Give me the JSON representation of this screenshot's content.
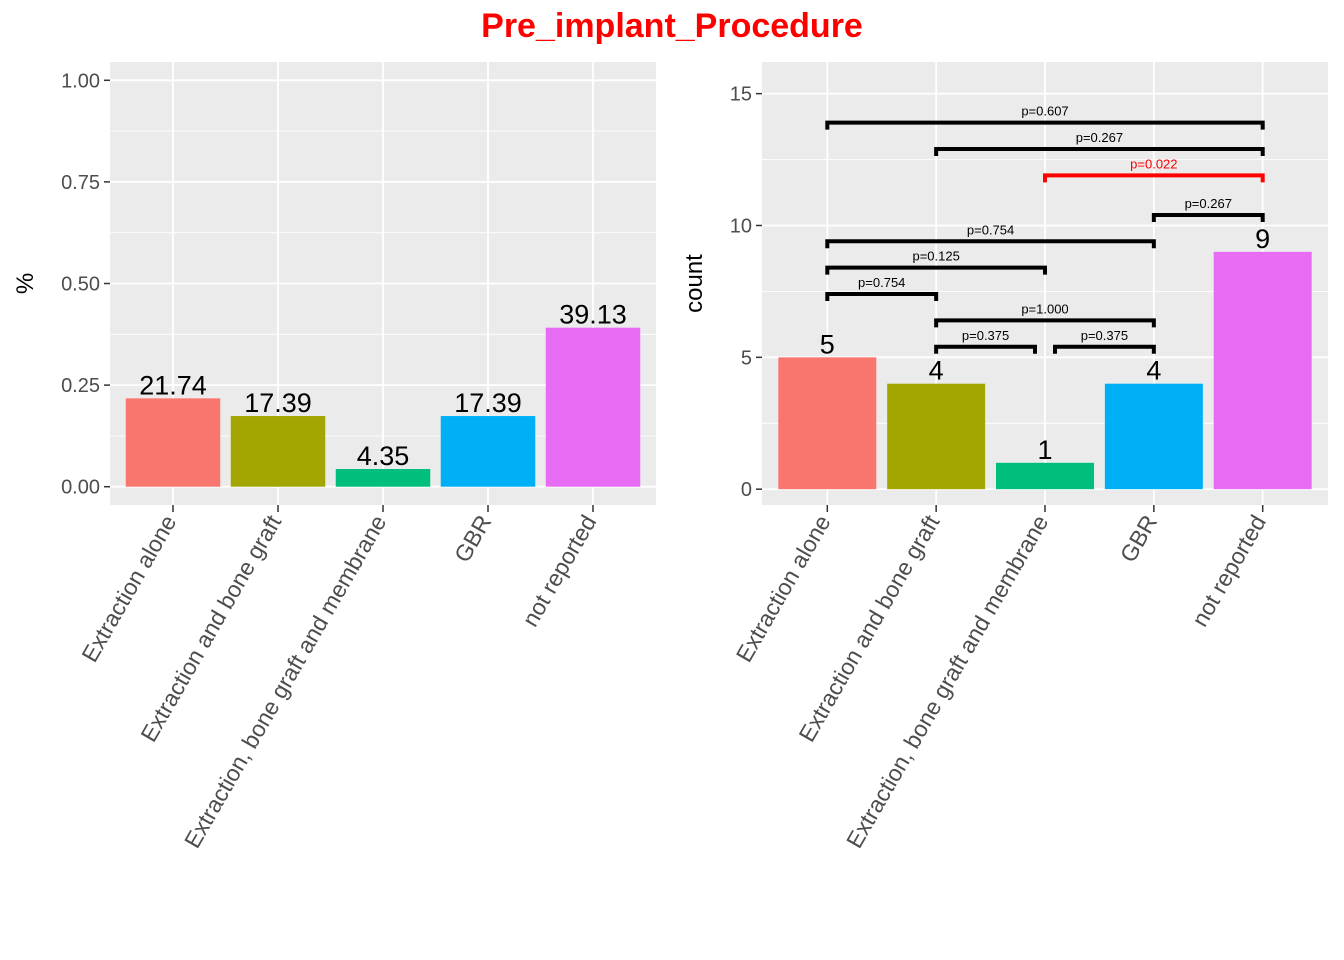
{
  "title": "Pre_implant_Procedure",
  "colors": {
    "title": "#ff0000",
    "panel_bg": "#ebebeb",
    "grid": "#ffffff",
    "axis_tick": "#333333",
    "bracket": "#000000",
    "bracket_significant": "#ff0000"
  },
  "chart_data": [
    {
      "type": "bar",
      "panel": "left",
      "title": "",
      "xlabel": "",
      "ylabel": "%",
      "ylim": [
        -0.045,
        1.045
      ],
      "yticks": [
        0,
        0.25,
        0.5,
        0.75,
        1
      ],
      "ytick_labels": [
        "0.00",
        "0.25",
        "0.50",
        "0.75",
        "1.00"
      ],
      "grid": true,
      "categories": [
        "Extraction alone",
        "Extraction and bone graft",
        "Extraction, bone graft and membrane",
        "GBR",
        "not reported"
      ],
      "values": [
        0.2174,
        0.1739,
        0.0435,
        0.1739,
        0.3913
      ],
      "labels": [
        "21.74",
        "17.39",
        "4.35",
        "17.39",
        "39.13"
      ],
      "bar_colors": [
        "#F8766D",
        "#A3A500",
        "#00BF7D",
        "#00B0F6",
        "#E76BF3"
      ]
    },
    {
      "type": "bar",
      "panel": "right",
      "title": "",
      "xlabel": "",
      "ylabel": "count",
      "ylim": [
        -0.6,
        16.2
      ],
      "yticks": [
        0,
        5,
        10,
        15
      ],
      "ytick_labels": [
        "0",
        "5",
        "10",
        "15"
      ],
      "grid": true,
      "categories": [
        "Extraction alone",
        "Extraction and bone graft",
        "Extraction, bone graft and membrane",
        "GBR",
        "not reported"
      ],
      "values": [
        5,
        4,
        1,
        4,
        9
      ],
      "labels": [
        "5",
        "4",
        "1",
        "4",
        "9"
      ],
      "bar_colors": [
        "#F8766D",
        "#A3A500",
        "#00BF7D",
        "#00B0F6",
        "#E76BF3"
      ],
      "comparisons": [
        {
          "from": 0,
          "to": 4,
          "y": 13.9,
          "label": "p=0.607",
          "significant": false
        },
        {
          "from": 1,
          "to": 4,
          "y": 12.9,
          "label": "p=0.267",
          "significant": false
        },
        {
          "from": 2,
          "to": 4,
          "y": 11.9,
          "label": "p=0.022",
          "significant": true
        },
        {
          "from": 3,
          "to": 4,
          "y": 10.4,
          "label": "p=0.267",
          "significant": false
        },
        {
          "from": 0,
          "to": 3,
          "y": 9.4,
          "label": "p=0.754",
          "significant": false
        },
        {
          "from": 0,
          "to": 2,
          "y": 8.4,
          "label": "p=0.125",
          "significant": false
        },
        {
          "from": 0,
          "to": 1,
          "y": 7.4,
          "label": "p=0.754",
          "significant": false
        },
        {
          "from": 1,
          "to": 3,
          "y": 6.4,
          "label": "p=1.000",
          "significant": false
        },
        {
          "from": 1,
          "to": 2,
          "y": 5.4,
          "label": "p=0.375",
          "significant": false,
          "inset": "right"
        },
        {
          "from": 2,
          "to": 3,
          "y": 5.4,
          "label": "p=0.375",
          "significant": false,
          "inset": "left"
        }
      ]
    }
  ]
}
